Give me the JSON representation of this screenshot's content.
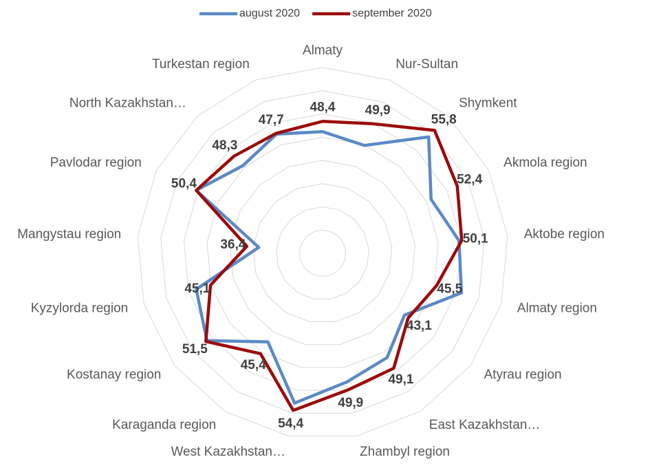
{
  "chart_data": {
    "type": "radar",
    "categories": [
      "Almaty",
      "Nur-Sultan",
      "Shymkent",
      "Akmola region",
      "Aktobe region",
      "Almaty region",
      "Atyrau region",
      "East Kazakhstan…",
      "Zhambyl region",
      "West Kazakhstan…",
      "Karaganda region",
      "Kostanay region",
      "Kyzylorda region",
      "Mangystau region",
      "Pavlodar region",
      "North Kazakhstan…",
      "Turkestan region"
    ],
    "series": [
      {
        "name": "august 2020",
        "color": "#5a8ac6",
        "values": [
          46.2,
          44.9,
          53.9,
          46.1,
          49.5,
          51.1,
          42.1,
          46.4,
          48.2,
          52.8,
          42.4,
          51.2,
          48.3,
          33.8,
          50.4,
          45.5,
          47.5
        ]
      },
      {
        "name": "september 2020",
        "color": "#9b0b0b",
        "values": [
          48.4,
          49.9,
          55.8,
          52.4,
          50.1,
          45.5,
          43.1,
          49.1,
          49.9,
          54.4,
          45.4,
          51.5,
          45.1,
          36.4,
          50.4,
          48.3,
          47.7
        ],
        "value_labels": [
          "48,4",
          "49,9",
          "55,8",
          "52,4",
          "50,1",
          "45,5",
          "43,1",
          "49,1",
          "49,9",
          "54,4",
          "45,4",
          "51,5",
          "45,1",
          "36,4",
          "50,4",
          "48,3",
          "47,7"
        ]
      }
    ],
    "ylim": [
      20,
      60
    ],
    "yticks": [
      20,
      25,
      30,
      35,
      40,
      45,
      50,
      55,
      60
    ],
    "grid": true,
    "legend": "top"
  }
}
